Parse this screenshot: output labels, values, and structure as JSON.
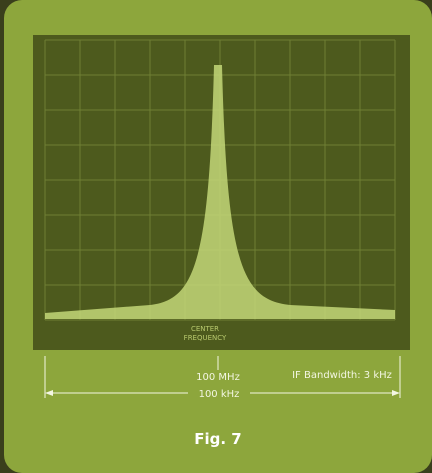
{
  "figure": {
    "screen_label_top": "CENTER",
    "screen_label_bottom": "FREQUENCY",
    "center_label": "100 MHz",
    "bandwidth_label": "IF Bandwidth: 3 kHz",
    "span_label": "100 kHz",
    "caption": "Fig. 7"
  }
}
